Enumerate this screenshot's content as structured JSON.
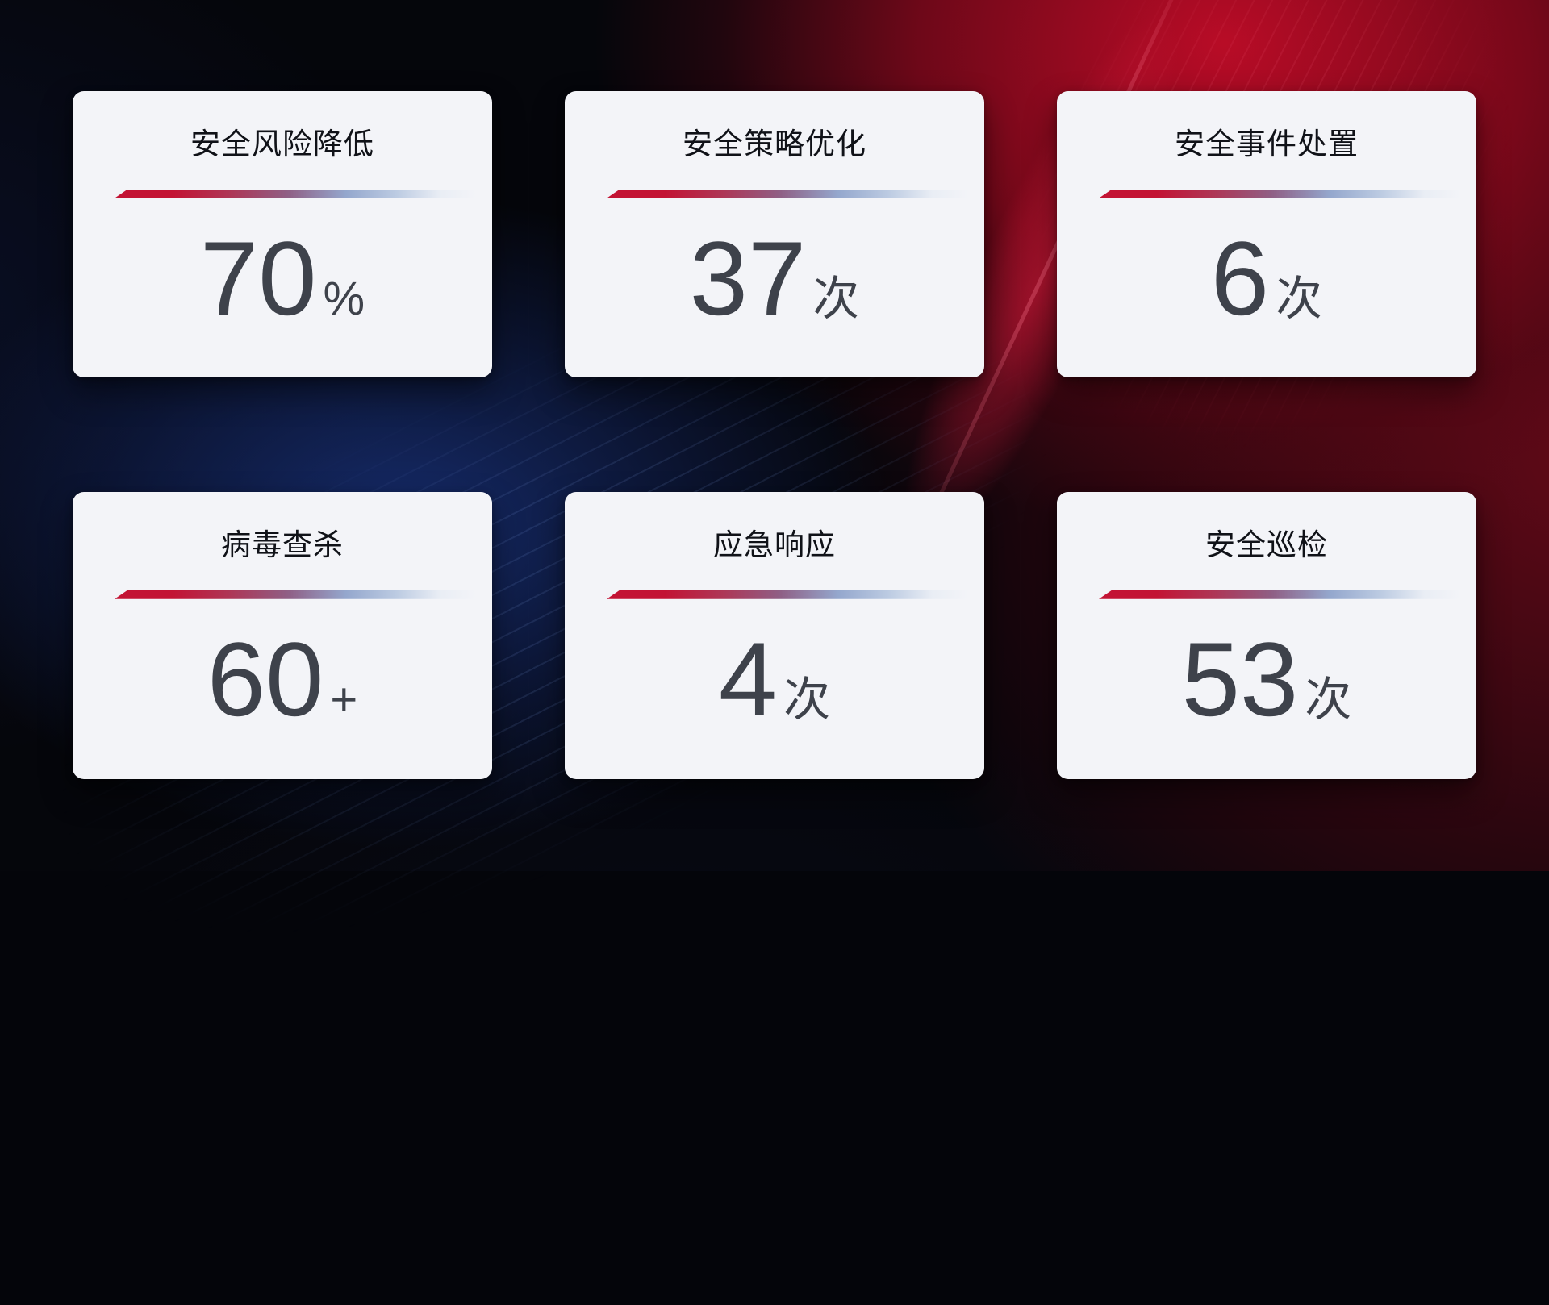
{
  "dashboard": {
    "cards": [
      {
        "title": "安全风险降低",
        "value": "70",
        "unit": "%"
      },
      {
        "title": "安全策略优化",
        "value": "37",
        "unit": "次"
      },
      {
        "title": "安全事件处置",
        "value": "6",
        "unit": "次"
      },
      {
        "title": "病毒查杀",
        "value": "60",
        "unit": "+"
      },
      {
        "title": "应急响应",
        "value": "4",
        "unit": "次"
      },
      {
        "title": "安全巡检",
        "value": "53",
        "unit": "次"
      }
    ]
  },
  "colors": {
    "accent_red": "#c31334",
    "divider_blue": "#94a7cd",
    "card_bg": "#f3f4f8",
    "title_color": "#101218",
    "value_color": "#3e424b",
    "bg_base": "#05060b",
    "bg_red_glow": "#a00d22",
    "bg_blue_glow": "#1a3480"
  }
}
